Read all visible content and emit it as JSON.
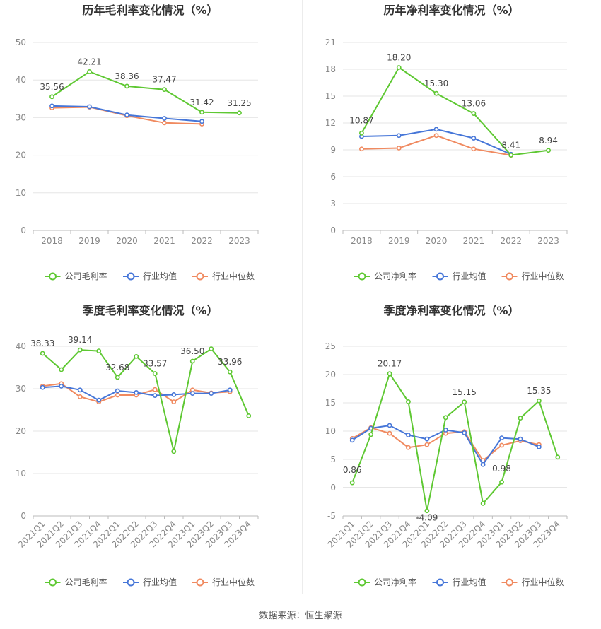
{
  "source": "数据来源：恒生聚源",
  "legend_items": {
    "company_gross": "公司毛利率",
    "company_net": "公司净利率",
    "industry_mean": "行业均值",
    "industry_median": "行业中位数"
  },
  "colors": {
    "company": "#5ec832",
    "industry_mean": "#4676d8",
    "industry_median": "#f08a60",
    "grid": "#e6e6e6",
    "axis_text": "#888888"
  },
  "chart_data": [
    {
      "id": "annual-gross",
      "type": "line",
      "title": "历年毛利率变化情况（%）",
      "categories": [
        "2018",
        "2019",
        "2020",
        "2021",
        "2022",
        "2023"
      ],
      "ylim": [
        0,
        50
      ],
      "yticks": [
        0,
        10,
        20,
        30,
        40,
        50
      ],
      "legend": "bottom",
      "series": [
        {
          "name": "公司毛利率",
          "key": "company",
          "values": [
            35.56,
            42.21,
            38.36,
            37.47,
            31.42,
            31.25
          ],
          "labels": true
        },
        {
          "name": "行业均值",
          "key": "industry_mean",
          "values": [
            33.1,
            32.9,
            30.7,
            29.8,
            29.0,
            null
          ]
        },
        {
          "name": "行业中位数",
          "key": "industry_median",
          "values": [
            32.6,
            32.8,
            30.5,
            28.6,
            28.3,
            null
          ]
        }
      ]
    },
    {
      "id": "annual-net",
      "type": "line",
      "title": "历年净利率变化情况（%）",
      "categories": [
        "2018",
        "2019",
        "2020",
        "2021",
        "2022",
        "2023"
      ],
      "ylim": [
        0,
        21
      ],
      "yticks": [
        0,
        3,
        6,
        9,
        12,
        15,
        18,
        21
      ],
      "legend": "bottom",
      "series": [
        {
          "name": "公司净利率",
          "key": "company",
          "values": [
            10.87,
            18.2,
            15.3,
            13.06,
            8.41,
            8.94
          ],
          "labels": true
        },
        {
          "name": "行业均值",
          "key": "industry_mean",
          "values": [
            10.5,
            10.6,
            11.3,
            10.3,
            8.5,
            null
          ]
        },
        {
          "name": "行业中位数",
          "key": "industry_median",
          "values": [
            9.1,
            9.2,
            10.6,
            9.1,
            8.4,
            null
          ]
        }
      ]
    },
    {
      "id": "quarterly-gross",
      "type": "line",
      "title": "季度毛利率变化情况（%）",
      "categories": [
        "2021Q1",
        "2021Q2",
        "2021Q3",
        "2021Q4",
        "2022Q1",
        "2022Q2",
        "2022Q3",
        "2022Q4",
        "2023Q1",
        "2023Q2",
        "2023Q3",
        "2023Q4"
      ],
      "ylim": [
        0,
        40
      ],
      "yticks": [
        0,
        10,
        20,
        30,
        40
      ],
      "legend": "bottom",
      "series": [
        {
          "name": "公司毛利率",
          "key": "company",
          "values": [
            38.33,
            34.5,
            39.14,
            38.9,
            32.68,
            37.6,
            33.57,
            15.2,
            36.5,
            39.4,
            33.96,
            23.6
          ],
          "label_indices": [
            0,
            2,
            4,
            6,
            8,
            10
          ]
        },
        {
          "name": "行业均值",
          "key": "industry_mean",
          "values": [
            30.3,
            30.6,
            29.7,
            27.3,
            29.5,
            29.1,
            28.4,
            28.6,
            28.9,
            28.9,
            29.7,
            null
          ]
        },
        {
          "name": "行业中位数",
          "key": "industry_median",
          "values": [
            30.6,
            31.2,
            28.1,
            26.9,
            28.5,
            28.5,
            29.8,
            26.9,
            29.7,
            29.0,
            29.3,
            null
          ]
        }
      ]
    },
    {
      "id": "quarterly-net",
      "type": "line",
      "title": "季度净利率变化情况（%）",
      "categories": [
        "2021Q1",
        "2021Q2",
        "2021Q3",
        "2021Q4",
        "2022Q1",
        "2022Q2",
        "2022Q3",
        "2022Q4",
        "2023Q1",
        "2023Q2",
        "2023Q3",
        "2023Q4"
      ],
      "ylim": [
        -5,
        25
      ],
      "yticks": [
        -5,
        0,
        5,
        10,
        15,
        20,
        25
      ],
      "legend": "bottom",
      "series": [
        {
          "name": "公司净利率",
          "key": "company",
          "values": [
            0.86,
            9.4,
            20.17,
            15.2,
            -4.09,
            12.4,
            15.15,
            -2.8,
            0.98,
            12.3,
            15.35,
            5.4
          ],
          "label_indices": [
            0,
            2,
            4,
            6,
            8,
            10
          ]
        },
        {
          "name": "行业均值",
          "key": "industry_mean",
          "values": [
            8.4,
            10.5,
            11.0,
            9.3,
            8.6,
            10.2,
            9.7,
            4.1,
            8.8,
            8.6,
            7.2,
            null
          ]
        },
        {
          "name": "行业中位数",
          "key": "industry_median",
          "values": [
            8.7,
            10.6,
            9.6,
            7.1,
            7.6,
            9.6,
            9.9,
            4.8,
            7.5,
            8.3,
            7.6,
            null
          ]
        }
      ]
    }
  ]
}
